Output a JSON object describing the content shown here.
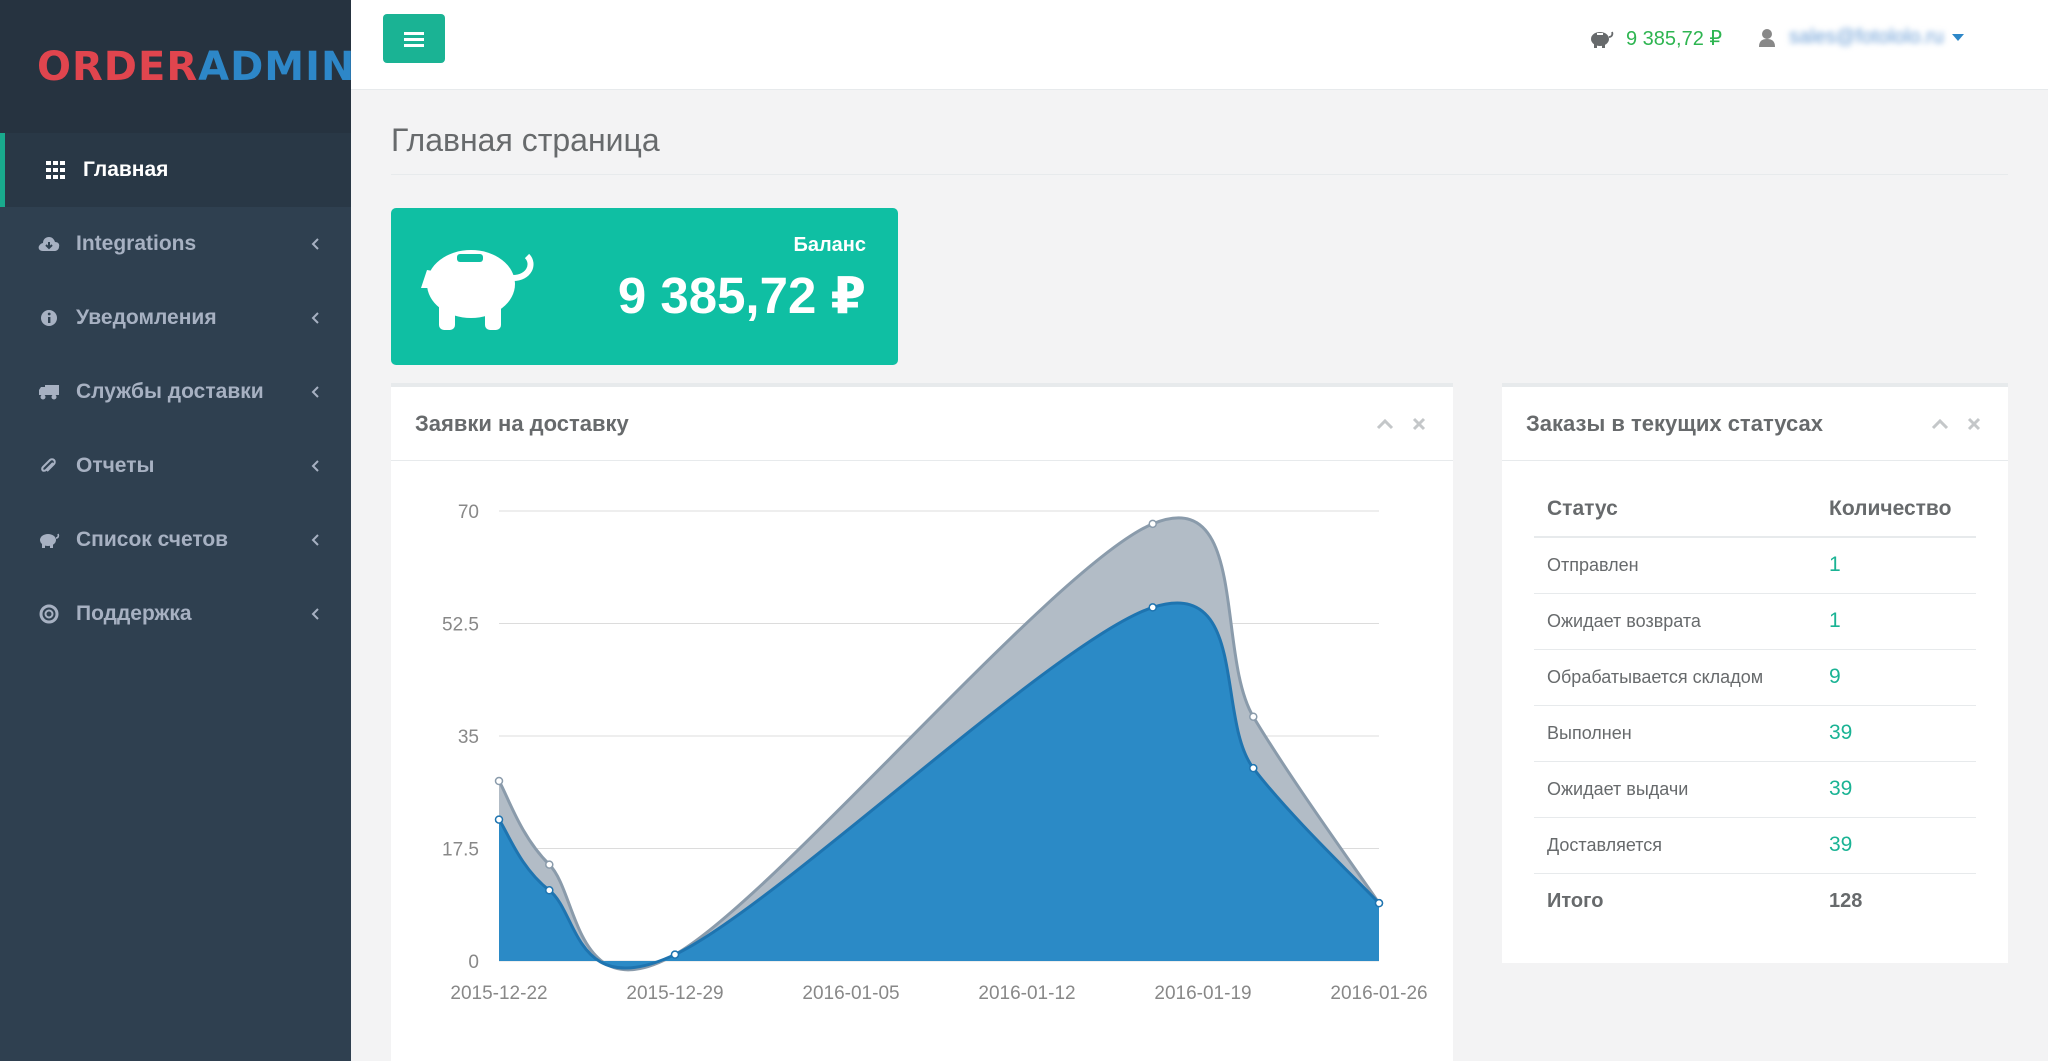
{
  "logo": {
    "part1": "ORDER",
    "part2": "ADMIN"
  },
  "sidebar": {
    "items": [
      {
        "label": "Главная",
        "icon": "grid-icon"
      },
      {
        "label": "Integrations",
        "icon": "cloud-download-icon"
      },
      {
        "label": "Уведомления",
        "icon": "info-circle-icon"
      },
      {
        "label": "Службы доставки",
        "icon": "truck-icon"
      },
      {
        "label": "Отчеты",
        "icon": "paperclip-icon"
      },
      {
        "label": "Список счетов",
        "icon": "piggy-bank-icon"
      },
      {
        "label": "Поддержка",
        "icon": "life-ring-icon"
      }
    ]
  },
  "topbar": {
    "balance": "9 385,72 ₽",
    "user_email": "sales@fotololo.ru"
  },
  "page": {
    "title": "Главная страница"
  },
  "balance_widget": {
    "label": "Баланс",
    "value": "9 385,72 ₽"
  },
  "chart_panel": {
    "title": "Заявки на доставку"
  },
  "status_panel": {
    "title": "Заказы в текущих статусах",
    "col_status": "Статус",
    "col_count": "Количество",
    "rows": [
      {
        "status": "Отправлен",
        "count": "1"
      },
      {
        "status": "Ожидает возврата",
        "count": "1"
      },
      {
        "status": "Обрабатывается складом",
        "count": "9"
      },
      {
        "status": "Выполнен",
        "count": "39"
      },
      {
        "status": "Ожидает выдачи",
        "count": "39"
      },
      {
        "status": "Доставляется",
        "count": "39"
      }
    ],
    "total_label": "Итого",
    "total_count": "128"
  },
  "colors": {
    "accent": "#1ab394",
    "sidebar": "#2f4050",
    "series_front": "#2b8ac6",
    "series_back": "#b2bcc6"
  },
  "chart_data": {
    "type": "area",
    "x_ticks": [
      "2015-12-22",
      "2015-12-29",
      "2016-01-05",
      "2016-01-12",
      "2016-01-19",
      "2016-01-26"
    ],
    "y_ticks": [
      "0",
      "17.5",
      "35",
      "52.5",
      "70"
    ],
    "ylim": [
      0,
      70
    ],
    "x": [
      "2015-12-22",
      "2015-12-24",
      "2015-12-29",
      "2016-01-17",
      "2016-01-21",
      "2016-01-26"
    ],
    "series": [
      {
        "values": [
          28,
          15,
          1,
          68,
          38,
          9
        ],
        "color": "#b2bcc6"
      },
      {
        "values": [
          22,
          11,
          1,
          55,
          30,
          9
        ],
        "color": "#2b8ac6"
      }
    ],
    "grid": true
  }
}
